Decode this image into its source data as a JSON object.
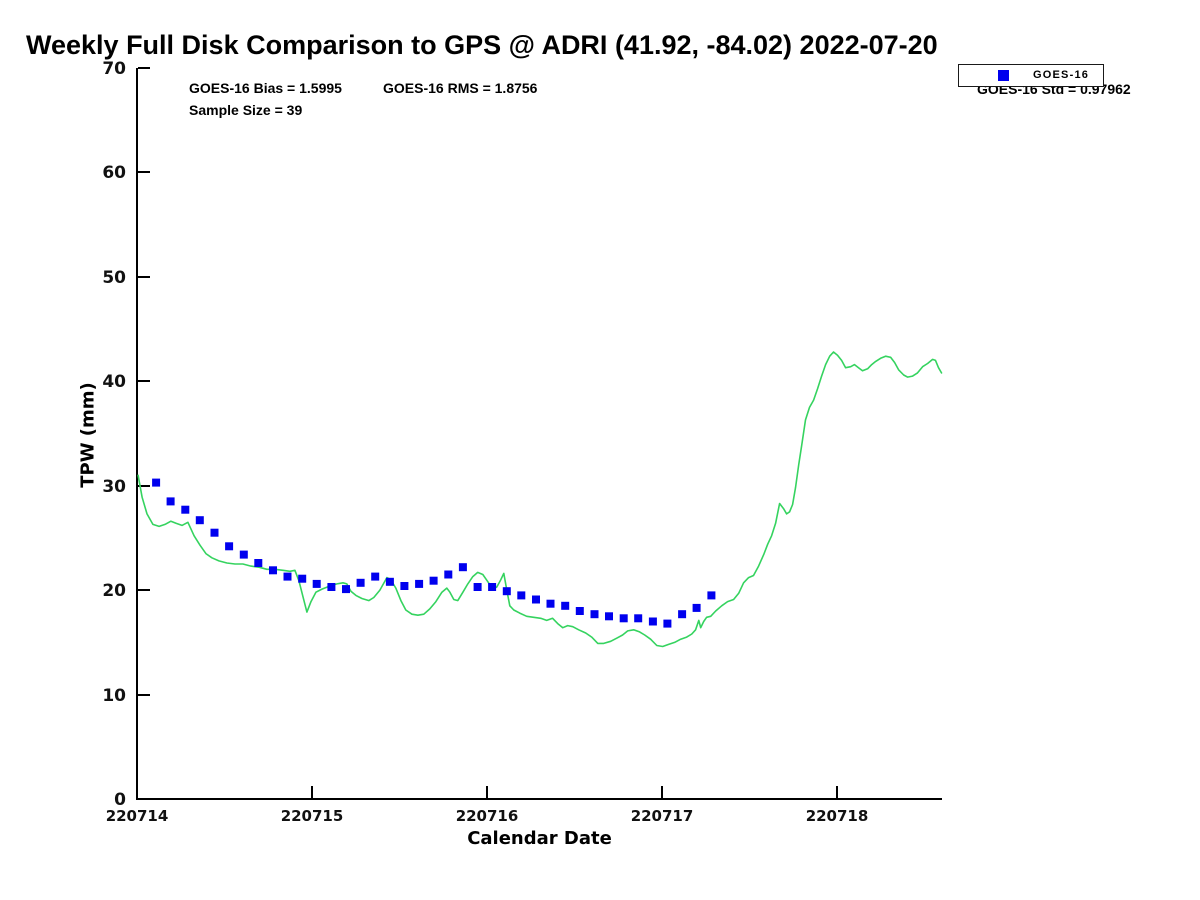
{
  "chart_data": {
    "type": "line",
    "title": "Weekly Full Disk Comparison to GPS @ ADRI (41.92, -84.02) 2022-07-20",
    "xlabel": "Calendar Date",
    "ylabel": "TPW (mm)",
    "grid": false,
    "ylim": [
      0,
      70
    ],
    "xlim_days": [
      0,
      4.6
    ],
    "x_axis": {
      "tick_positions": [
        0,
        1,
        2,
        3,
        4
      ],
      "tick_labels": [
        "220714",
        "220715",
        "220716",
        "220717",
        "220718"
      ]
    },
    "y_axis": {
      "ticks": [
        0,
        10,
        20,
        30,
        40,
        50,
        60,
        70
      ]
    },
    "annotations": {
      "bias": "GOES-16 Bias = 1.5995",
      "rms": "GOES-16 RMS = 1.8756",
      "sample": "Sample Size = 39",
      "std": "GOES-16 Std = 0.97962"
    },
    "legend": {
      "position": "top-right",
      "entries": [
        {
          "label": "GOES-16",
          "marker": "square",
          "color": "#0000ee"
        }
      ]
    },
    "series": [
      {
        "name": "GPS",
        "type": "line",
        "color": "#35d35f",
        "x_unit": "days since 220714",
        "points": [
          [
            0.006,
            31.0
          ],
          [
            0.029,
            28.9
          ],
          [
            0.057,
            27.3
          ],
          [
            0.091,
            26.3
          ],
          [
            0.126,
            26.1
          ],
          [
            0.16,
            26.3
          ],
          [
            0.194,
            26.6
          ],
          [
            0.223,
            26.4
          ],
          [
            0.257,
            26.2
          ],
          [
            0.291,
            26.5
          ],
          [
            0.326,
            25.2
          ],
          [
            0.36,
            24.3
          ],
          [
            0.394,
            23.5
          ],
          [
            0.428,
            23.1
          ],
          [
            0.468,
            22.8
          ],
          [
            0.514,
            22.6
          ],
          [
            0.56,
            22.5
          ],
          [
            0.605,
            22.5
          ],
          [
            0.651,
            22.3
          ],
          [
            0.697,
            22.2
          ],
          [
            0.742,
            22.0
          ],
          [
            0.788,
            22.0
          ],
          [
            0.834,
            21.9
          ],
          [
            0.874,
            21.8
          ],
          [
            0.902,
            21.9
          ],
          [
            0.925,
            20.9
          ],
          [
            0.948,
            19.4
          ],
          [
            0.971,
            17.9
          ],
          [
            0.994,
            18.9
          ],
          [
            1.022,
            19.8
          ],
          [
            1.057,
            20.1
          ],
          [
            1.102,
            20.4
          ],
          [
            1.142,
            20.6
          ],
          [
            1.177,
            20.7
          ],
          [
            1.199,
            20.6
          ],
          [
            1.222,
            19.9
          ],
          [
            1.251,
            19.5
          ],
          [
            1.285,
            19.2
          ],
          [
            1.325,
            19.0
          ],
          [
            1.353,
            19.3
          ],
          [
            1.388,
            20.0
          ],
          [
            1.428,
            21.2
          ],
          [
            1.45,
            21.0
          ],
          [
            1.479,
            20.2
          ],
          [
            1.508,
            19.0
          ],
          [
            1.536,
            18.1
          ],
          [
            1.571,
            17.7
          ],
          [
            1.605,
            17.6
          ],
          [
            1.639,
            17.7
          ],
          [
            1.673,
            18.2
          ],
          [
            1.708,
            18.9
          ],
          [
            1.742,
            19.8
          ],
          [
            1.77,
            20.2
          ],
          [
            1.788,
            19.8
          ],
          [
            1.81,
            19.1
          ],
          [
            1.833,
            19.0
          ],
          [
            1.862,
            19.8
          ],
          [
            1.89,
            20.6
          ],
          [
            1.919,
            21.3
          ],
          [
            1.947,
            21.7
          ],
          [
            1.976,
            21.5
          ],
          [
            2.005,
            20.8
          ],
          [
            2.033,
            20.1
          ],
          [
            2.056,
            20.3
          ],
          [
            2.079,
            21.0
          ],
          [
            2.096,
            21.6
          ],
          [
            2.113,
            20.0
          ],
          [
            2.13,
            18.5
          ],
          [
            2.153,
            18.1
          ],
          [
            2.187,
            17.8
          ],
          [
            2.227,
            17.5
          ],
          [
            2.267,
            17.4
          ],
          [
            2.307,
            17.3
          ],
          [
            2.341,
            17.1
          ],
          [
            2.375,
            17.3
          ],
          [
            2.404,
            16.8
          ],
          [
            2.433,
            16.4
          ],
          [
            2.461,
            16.6
          ],
          [
            2.49,
            16.5
          ],
          [
            2.524,
            16.2
          ],
          [
            2.564,
            15.9
          ],
          [
            2.598,
            15.5
          ],
          [
            2.633,
            14.9
          ],
          [
            2.667,
            14.9
          ],
          [
            2.707,
            15.1
          ],
          [
            2.741,
            15.4
          ],
          [
            2.775,
            15.7
          ],
          [
            2.804,
            16.1
          ],
          [
            2.838,
            16.2
          ],
          [
            2.872,
            16.0
          ],
          [
            2.901,
            15.7
          ],
          [
            2.935,
            15.3
          ],
          [
            2.97,
            14.7
          ],
          [
            3.004,
            14.6
          ],
          [
            3.038,
            14.8
          ],
          [
            3.072,
            15.0
          ],
          [
            3.107,
            15.3
          ],
          [
            3.141,
            15.5
          ],
          [
            3.17,
            15.8
          ],
          [
            3.192,
            16.2
          ],
          [
            3.21,
            17.1
          ],
          [
            3.221,
            16.4
          ],
          [
            3.238,
            17.0
          ],
          [
            3.255,
            17.4
          ],
          [
            3.278,
            17.5
          ],
          [
            3.307,
            18.0
          ],
          [
            3.341,
            18.5
          ],
          [
            3.375,
            18.9
          ],
          [
            3.409,
            19.1
          ],
          [
            3.438,
            19.7
          ],
          [
            3.466,
            20.7
          ],
          [
            3.495,
            21.2
          ],
          [
            3.523,
            21.4
          ],
          [
            3.552,
            22.3
          ],
          [
            3.581,
            23.4
          ],
          [
            3.604,
            24.4
          ],
          [
            3.626,
            25.2
          ],
          [
            3.649,
            26.4
          ],
          [
            3.672,
            28.3
          ],
          [
            3.695,
            27.8
          ],
          [
            3.712,
            27.3
          ],
          [
            3.729,
            27.5
          ],
          [
            3.746,
            28.2
          ],
          [
            3.763,
            29.8
          ],
          [
            3.781,
            32.0
          ],
          [
            3.798,
            33.8
          ],
          [
            3.82,
            36.3
          ],
          [
            3.843,
            37.5
          ],
          [
            3.866,
            38.2
          ],
          [
            3.889,
            39.3
          ],
          [
            3.912,
            40.5
          ],
          [
            3.935,
            41.6
          ],
          [
            3.958,
            42.4
          ],
          [
            3.98,
            42.8
          ],
          [
            4.003,
            42.5
          ],
          [
            4.026,
            42.0
          ],
          [
            4.049,
            41.3
          ],
          [
            4.078,
            41.4
          ],
          [
            4.1,
            41.6
          ],
          [
            4.123,
            41.3
          ],
          [
            4.146,
            41.0
          ],
          [
            4.175,
            41.2
          ],
          [
            4.198,
            41.6
          ],
          [
            4.221,
            41.9
          ],
          [
            4.249,
            42.2
          ],
          [
            4.278,
            42.4
          ],
          [
            4.306,
            42.3
          ],
          [
            4.329,
            41.8
          ],
          [
            4.352,
            41.1
          ],
          [
            4.381,
            40.6
          ],
          [
            4.403,
            40.4
          ],
          [
            4.432,
            40.5
          ],
          [
            4.46,
            40.8
          ],
          [
            4.489,
            41.4
          ],
          [
            4.518,
            41.7
          ],
          [
            4.546,
            42.1
          ],
          [
            4.563,
            42.0
          ],
          [
            4.58,
            41.3
          ],
          [
            4.597,
            40.8
          ]
        ]
      },
      {
        "name": "GOES-16",
        "type": "scatter",
        "marker": "square",
        "color": "#0000ee",
        "x_unit": "days since 220714",
        "points": [
          [
            0.109,
            30.3
          ],
          [
            0.192,
            28.5
          ],
          [
            0.276,
            27.7
          ],
          [
            0.359,
            26.7
          ],
          [
            0.443,
            25.5
          ],
          [
            0.526,
            24.2
          ],
          [
            0.61,
            23.4
          ],
          [
            0.693,
            22.6
          ],
          [
            0.777,
            21.9
          ],
          [
            0.86,
            21.3
          ],
          [
            0.944,
            21.1
          ],
          [
            1.027,
            20.6
          ],
          [
            1.111,
            20.3
          ],
          [
            1.194,
            20.1
          ],
          [
            1.278,
            20.7
          ],
          [
            1.361,
            21.3
          ],
          [
            1.445,
            20.8
          ],
          [
            1.528,
            20.4
          ],
          [
            1.612,
            20.6
          ],
          [
            1.695,
            20.9
          ],
          [
            1.779,
            21.5
          ],
          [
            1.862,
            22.2
          ],
          [
            1.946,
            20.3
          ],
          [
            2.029,
            20.3
          ],
          [
            2.113,
            19.9
          ],
          [
            2.196,
            19.5
          ],
          [
            2.28,
            19.1
          ],
          [
            2.363,
            18.7
          ],
          [
            2.447,
            18.5
          ],
          [
            2.53,
            18.0
          ],
          [
            2.614,
            17.7
          ],
          [
            2.697,
            17.5
          ],
          [
            2.781,
            17.3
          ],
          [
            2.864,
            17.3
          ],
          [
            2.948,
            17.0
          ],
          [
            3.031,
            16.8
          ],
          [
            3.115,
            17.7
          ],
          [
            3.198,
            18.3
          ],
          [
            3.282,
            19.5
          ]
        ]
      }
    ]
  }
}
